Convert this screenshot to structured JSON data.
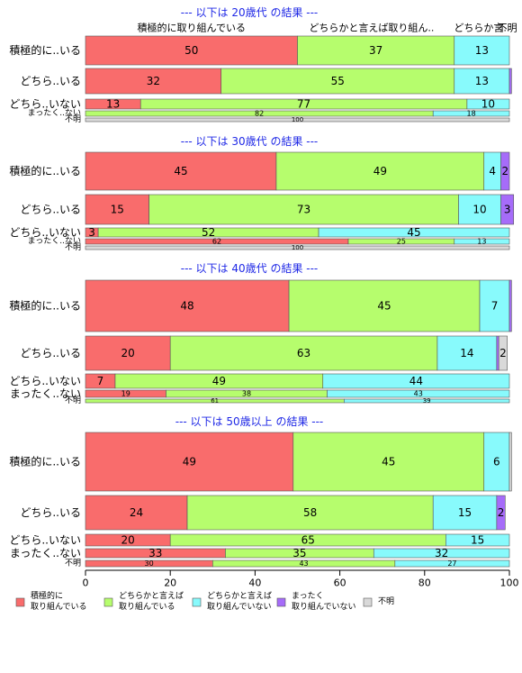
{
  "chart_data": {
    "type": "bar",
    "orientation": "horizontal",
    "stacked": true,
    "xlim": [
      0,
      100
    ],
    "x_ticks": [
      "0",
      "20",
      "40",
      "60",
      "80",
      "100"
    ],
    "grid": false,
    "legend_position": "bottom",
    "series": [
      {
        "key": "a",
        "name": "積極的に\n取り組んでいる",
        "color": "#f96c6c"
      },
      {
        "key": "b",
        "name": "どちらかと言えば\n取り組んでいる",
        "color": "#b6fd6d"
      },
      {
        "key": "c",
        "name": "どちらかと言えば\n取り組んでいない",
        "color": "#88fafc"
      },
      {
        "key": "d",
        "name": "まったく\n取り組んでいない",
        "color": "#a66cf9"
      },
      {
        "key": "e",
        "name": "不明",
        "color": "#d9d9d9"
      }
    ],
    "panels": [
      {
        "title": "--- 以下は 20歳代 の結果 ---",
        "column_headers": [
          {
            "text": "積極的に取り組んでいる",
            "at": 25
          },
          {
            "text": "どちらかと言えば取り組ん..",
            "at": 67.5
          },
          {
            "text": "どちらか言..",
            "at": 93.5
          },
          {
            "text": "不明",
            "at": 99.5
          }
        ],
        "rows": [
          {
            "label": "積極的に..いる",
            "values": [
              50,
              37,
              13,
              0,
              0
            ],
            "labels": [
              "50",
              "37",
              "13",
              "",
              ""
            ]
          },
          {
            "label": "どちら..いる",
            "values": [
              32,
              55,
              13,
              0.5,
              0
            ],
            "labels": [
              "32",
              "55",
              "13",
              "",
              ""
            ]
          },
          {
            "label": "どちら..いない",
            "values": [
              13,
              77,
              10,
              0,
              0
            ],
            "labels": [
              "13",
              "77",
              "10",
              "",
              ""
            ]
          },
          {
            "label": "まったく..ない",
            "values": [
              0,
              82,
              18,
              0,
              0
            ],
            "labels": [
              "",
              "82",
              "18",
              "",
              ""
            ]
          },
          {
            "label": "不明",
            "values": [
              0,
              0,
              0,
              0,
              100
            ],
            "labels": [
              "",
              "",
              "",
              "",
              "100"
            ]
          }
        ]
      },
      {
        "title": "--- 以下は 30歳代 の結果 ---",
        "column_headers": [],
        "rows": [
          {
            "label": "積極的に..いる",
            "values": [
              45,
              49,
              4,
              2,
              0
            ],
            "labels": [
              "45",
              "49",
              "4",
              "2",
              ""
            ]
          },
          {
            "label": "どちら..いる",
            "values": [
              15,
              73,
              10,
              3,
              0
            ],
            "labels": [
              "15",
              "73",
              "10",
              "3",
              ""
            ]
          },
          {
            "label": "どちら..いない",
            "values": [
              3,
              52,
              45,
              0,
              0
            ],
            "labels": [
              "3",
              "52",
              "45",
              "",
              ""
            ]
          },
          {
            "label": "まったく..ない",
            "values": [
              62,
              25,
              13,
              0,
              0
            ],
            "labels": [
              "62",
              "25",
              "13",
              "",
              ""
            ]
          },
          {
            "label": "不明",
            "values": [
              0,
              0,
              0,
              0,
              100
            ],
            "labels": [
              "",
              "",
              "",
              "",
              "100"
            ]
          }
        ]
      },
      {
        "title": "--- 以下は 40歳代 の結果 ---",
        "column_headers": [],
        "rows": [
          {
            "label": "積極的に..いる",
            "values": [
              48,
              45,
              7,
              0.5,
              0
            ],
            "labels": [
              "48",
              "45",
              "7",
              "",
              ""
            ]
          },
          {
            "label": "どちら..いる",
            "values": [
              20,
              63,
              14,
              0.5,
              2
            ],
            "labels": [
              "20",
              "63",
              "14",
              "",
              "2"
            ]
          },
          {
            "label": "どちら..いない",
            "values": [
              7,
              49,
              44,
              0,
              0
            ],
            "labels": [
              "7",
              "49",
              "44",
              "",
              ""
            ]
          },
          {
            "label": "まったく..ない",
            "values": [
              19,
              38,
              43,
              0,
              0
            ],
            "labels": [
              "19",
              "38",
              "43",
              "",
              ""
            ]
          },
          {
            "label": "不明",
            "values": [
              0,
              61,
              39,
              0,
              0
            ],
            "labels": [
              "",
              "61",
              "39",
              "",
              ""
            ]
          }
        ]
      },
      {
        "title": "--- 以下は 50歳以上 の結果 ---",
        "column_headers": [],
        "rows": [
          {
            "label": "積極的に..いる",
            "values": [
              49,
              45,
              6,
              0,
              0.5
            ],
            "labels": [
              "49",
              "45",
              "6",
              "",
              ""
            ]
          },
          {
            "label": "どちら..いる",
            "values": [
              24,
              58,
              15,
              2,
              0
            ],
            "labels": [
              "24",
              "58",
              "15",
              "2",
              ""
            ]
          },
          {
            "label": "どちら..いない",
            "values": [
              20,
              65,
              15,
              0,
              0
            ],
            "labels": [
              "20",
              "65",
              "15",
              "",
              ""
            ]
          },
          {
            "label": "まったく..ない",
            "values": [
              33,
              35,
              32,
              0,
              0
            ],
            "labels": [
              "33",
              "35",
              "32",
              "",
              ""
            ]
          },
          {
            "label": "不明",
            "values": [
              30,
              43,
              27,
              0,
              0
            ],
            "labels": [
              "30",
              "43",
              "27",
              "",
              ""
            ]
          }
        ]
      }
    ]
  }
}
